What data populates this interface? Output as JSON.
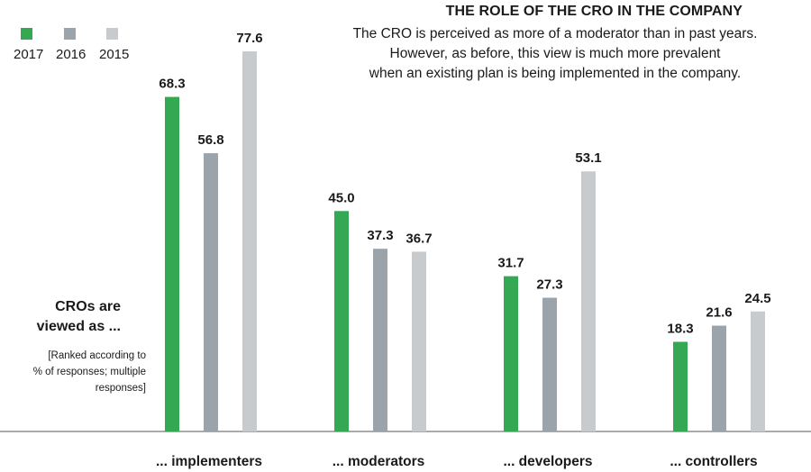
{
  "chart_data": {
    "type": "bar",
    "title": "THE ROLE OF THE CRO IN THE COMPANY",
    "subtitle_lines": [
      "The CRO is perceived as more of a moderator than in past years.",
      "However, as before, this view is much more prevalent",
      "when an existing plan is being implemented in the company."
    ],
    "side_title_lines": [
      "CROs are",
      "viewed as ..."
    ],
    "side_note_lines": [
      "[Ranked according to",
      "% of responses; multiple",
      "responses]"
    ],
    "categories": [
      "... implementers",
      "... moderators",
      "... developers",
      "... controllers"
    ],
    "series": [
      {
        "name": "2017",
        "color": "#34a853",
        "values": [
          68.3,
          45.0,
          31.7,
          18.3
        ]
      },
      {
        "name": "2016",
        "color": "#9ba4aa",
        "values": [
          56.8,
          37.3,
          27.3,
          21.6
        ]
      },
      {
        "name": "2015",
        "color": "#c8cbcd",
        "values": [
          77.6,
          36.7,
          53.1,
          24.5
        ]
      }
    ],
    "value_labels": [
      [
        "68.3",
        "45.0",
        "31.7",
        "18.3"
      ],
      [
        "56.8",
        "37.3",
        "27.3",
        "21.6"
      ],
      [
        "77.6",
        "36.7",
        "53.1",
        "24.5"
      ]
    ],
    "ylim": [
      0,
      77.6
    ],
    "grid": false,
    "legend_position": "top-left",
    "xlabel": "",
    "ylabel": ""
  }
}
